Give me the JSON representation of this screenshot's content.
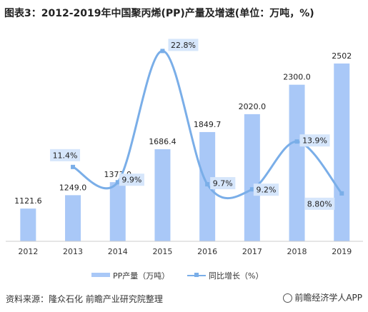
{
  "title": "图表3：2012-2019年中国聚丙烯(PP)产量及增速(单位：万吨，%)",
  "source": "资料来源：隆众石化 前瞻产业研究院整理",
  "brand": "前瞻经济学人APP",
  "colors": {
    "bar": "#a9c8f7",
    "line": "#7aaee8",
    "label_bg": "#d6e6fb"
  },
  "chart_data": {
    "type": "bar",
    "categories": [
      "2012",
      "2013",
      "2014",
      "2015",
      "2016",
      "2017",
      "2018",
      "2019"
    ],
    "series": [
      {
        "name": "PP产量（万吨）",
        "type": "bar",
        "values": [
          1121.6,
          1249.0,
          1373.0,
          1686.4,
          1849.7,
          2020.0,
          2300.0,
          2502
        ],
        "labels": [
          "1121.6",
          "1249.0",
          "1373.0",
          "1686.4",
          "1849.7",
          "2020.0",
          "2300.0",
          "2502"
        ]
      },
      {
        "name": "同比增长（%）",
        "type": "line",
        "x": [
          "2013",
          "2014",
          "2015",
          "2016",
          "2017",
          "2018",
          "2019"
        ],
        "values": [
          11.4,
          9.9,
          22.8,
          9.7,
          9.2,
          13.9,
          8.8
        ],
        "labels": [
          "11.4%",
          "9.9%",
          "22.8%",
          "9.7%",
          "9.2%",
          "13.9%",
          "8.80%"
        ]
      }
    ],
    "legend": "bottom-center",
    "grid": false
  }
}
